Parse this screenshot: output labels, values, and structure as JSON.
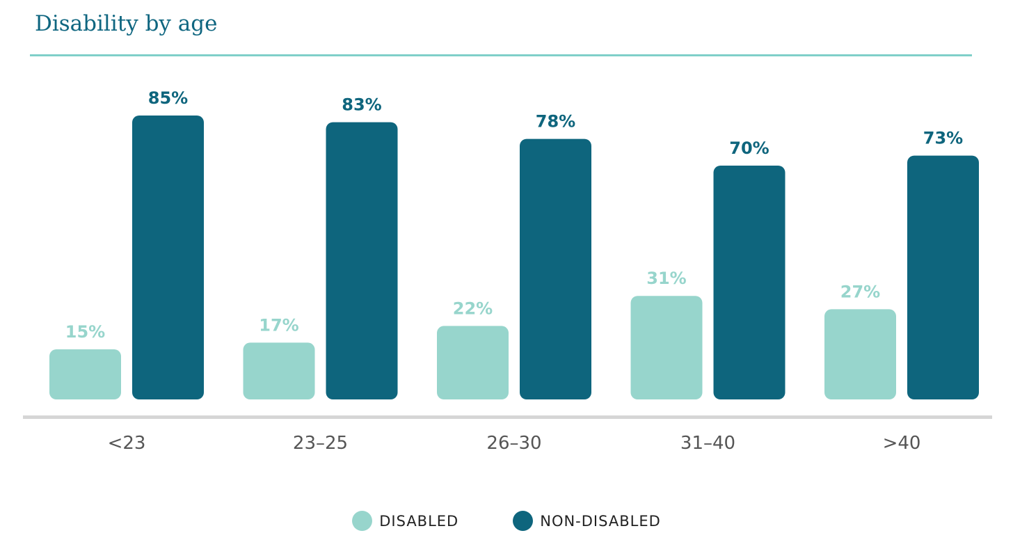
{
  "chart_data": {
    "type": "bar",
    "title": "Disability by age",
    "categories": [
      "<23",
      "23–25",
      "26–30",
      "31–40",
      ">40"
    ],
    "series": [
      {
        "name": "DISABLED",
        "values": [
          15,
          17,
          22,
          31,
          27
        ],
        "labels": [
          "15%",
          "17%",
          "22%",
          "31%",
          "27%"
        ],
        "color": "#97d5cc"
      },
      {
        "name": "NON-DISABLED",
        "values": [
          85,
          83,
          78,
          70,
          73
        ],
        "labels": [
          "85%",
          "83%",
          "78%",
          "70%",
          "73%"
        ],
        "color": "#0e657d"
      }
    ],
    "ylim": [
      0,
      100
    ],
    "grid": false,
    "legend": "bottom-center"
  }
}
